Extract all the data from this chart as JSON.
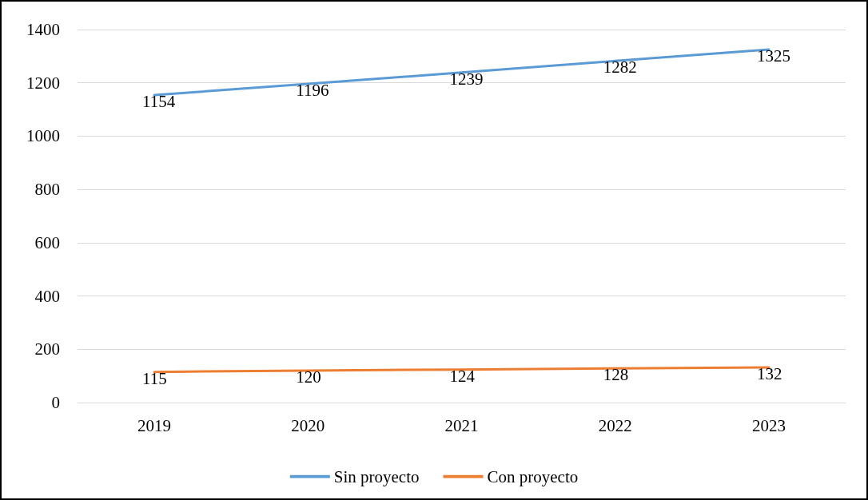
{
  "chart_data": {
    "type": "line",
    "categories": [
      "2019",
      "2020",
      "2021",
      "2022",
      "2023"
    ],
    "series": [
      {
        "name": "Sin proyecto",
        "color": "#5b9bd5",
        "values": [
          1154,
          1196,
          1239,
          1282,
          1325
        ]
      },
      {
        "name": "Con proyecto",
        "color": "#ed7d31",
        "values": [
          115,
          120,
          124,
          128,
          132
        ]
      }
    ],
    "ylim": [
      0,
      1400
    ],
    "yticks": [
      0,
      200,
      400,
      600,
      800,
      1000,
      1200,
      1400
    ],
    "grid": "y",
    "legend": "bottom",
    "marker": "none",
    "line_style": "solid",
    "data_labels": true
  }
}
